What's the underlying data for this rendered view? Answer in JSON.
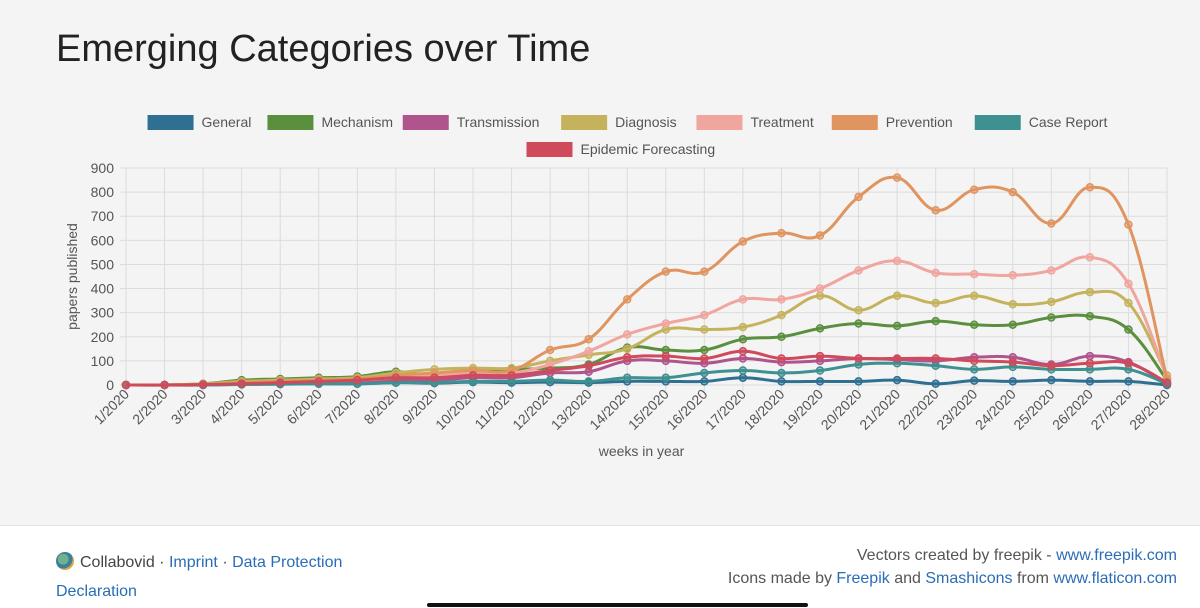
{
  "page_title": "Emerging Categories over Time",
  "chart_data": {
    "type": "line",
    "title": "",
    "xlabel": "weeks in year",
    "ylabel": "papers published",
    "ylim": [
      0,
      900
    ],
    "yticks": [
      0,
      100,
      200,
      300,
      400,
      500,
      600,
      700,
      800,
      900
    ],
    "grid": true,
    "legend_position": "top-center",
    "categories": [
      "1/2020",
      "2/2020",
      "3/2020",
      "4/2020",
      "5/2020",
      "6/2020",
      "7/2020",
      "8/2020",
      "9/2020",
      "10/2020",
      "11/2020",
      "12/2020",
      "13/2020",
      "14/2020",
      "15/2020",
      "16/2020",
      "17/2020",
      "18/2020",
      "19/2020",
      "20/2020",
      "21/2020",
      "22/2020",
      "23/2020",
      "24/2020",
      "25/2020",
      "26/2020",
      "27/2020",
      "28/2020"
    ],
    "series": [
      {
        "name": "General",
        "color": "#2e6f92",
        "values": [
          0,
          0,
          0,
          3,
          5,
          5,
          5,
          10,
          8,
          12,
          10,
          12,
          10,
          15,
          15,
          15,
          30,
          15,
          15,
          15,
          20,
          5,
          18,
          15,
          20,
          15,
          15,
          0
        ]
      },
      {
        "name": "Mechanism",
        "color": "#5a8f3d",
        "values": [
          0,
          0,
          5,
          20,
          25,
          30,
          35,
          55,
          40,
          60,
          65,
          70,
          85,
          155,
          145,
          145,
          190,
          200,
          235,
          255,
          245,
          265,
          250,
          250,
          280,
          285,
          230,
          20
        ]
      },
      {
        "name": "Transmission",
        "color": "#b0548e",
        "values": [
          0,
          0,
          2,
          5,
          10,
          10,
          15,
          20,
          20,
          30,
          30,
          50,
          55,
          100,
          100,
          90,
          110,
          95,
          100,
          110,
          105,
          100,
          115,
          115,
          85,
          120,
          95,
          5
        ]
      },
      {
        "name": "Diagnosis",
        "color": "#c4b35c",
        "values": [
          0,
          0,
          5,
          15,
          20,
          25,
          30,
          50,
          65,
          70,
          70,
          100,
          125,
          150,
          230,
          230,
          240,
          290,
          370,
          310,
          370,
          340,
          370,
          335,
          345,
          385,
          340,
          40
        ]
      },
      {
        "name": "Treatment",
        "color": "#f0a59f",
        "values": [
          0,
          0,
          0,
          5,
          10,
          15,
          20,
          30,
          40,
          50,
          50,
          85,
          140,
          210,
          255,
          290,
          355,
          355,
          400,
          475,
          515,
          465,
          460,
          455,
          475,
          530,
          420,
          30
        ]
      },
      {
        "name": "Prevention",
        "color": "#e0945f",
        "values": [
          0,
          0,
          0,
          10,
          15,
          20,
          25,
          40,
          50,
          60,
          60,
          145,
          190,
          355,
          470,
          470,
          595,
          630,
          620,
          780,
          860,
          725,
          810,
          800,
          670,
          820,
          665,
          25
        ]
      },
      {
        "name": "Case Report",
        "color": "#3f9090",
        "values": [
          0,
          0,
          0,
          2,
          3,
          5,
          5,
          10,
          10,
          15,
          15,
          20,
          15,
          30,
          30,
          50,
          60,
          50,
          60,
          85,
          90,
          80,
          65,
          75,
          65,
          65,
          65,
          5
        ]
      },
      {
        "name": "Epidemic Forecasting",
        "color": "#cf4a5a",
        "values": [
          0,
          0,
          2,
          5,
          10,
          15,
          20,
          30,
          30,
          40,
          40,
          60,
          80,
          115,
          120,
          110,
          140,
          110,
          120,
          110,
          110,
          110,
          100,
          95,
          80,
          90,
          90,
          10
        ]
      }
    ]
  },
  "footer": {
    "brand": "Collabovid",
    "sep1": "·",
    "imprint": "Imprint",
    "sep2": "·",
    "data_protection": "Data Protection Declaration",
    "line1_prefix": "Vectors created by freepik - ",
    "line1_link": "www.freepik.com",
    "line2_prefix": "Icons made by ",
    "line2_link1": "Freepik",
    "line2_mid": " and ",
    "line2_link2": "Smashicons",
    "line2_mid2": " from ",
    "line2_link3": "www.flaticon.com"
  }
}
